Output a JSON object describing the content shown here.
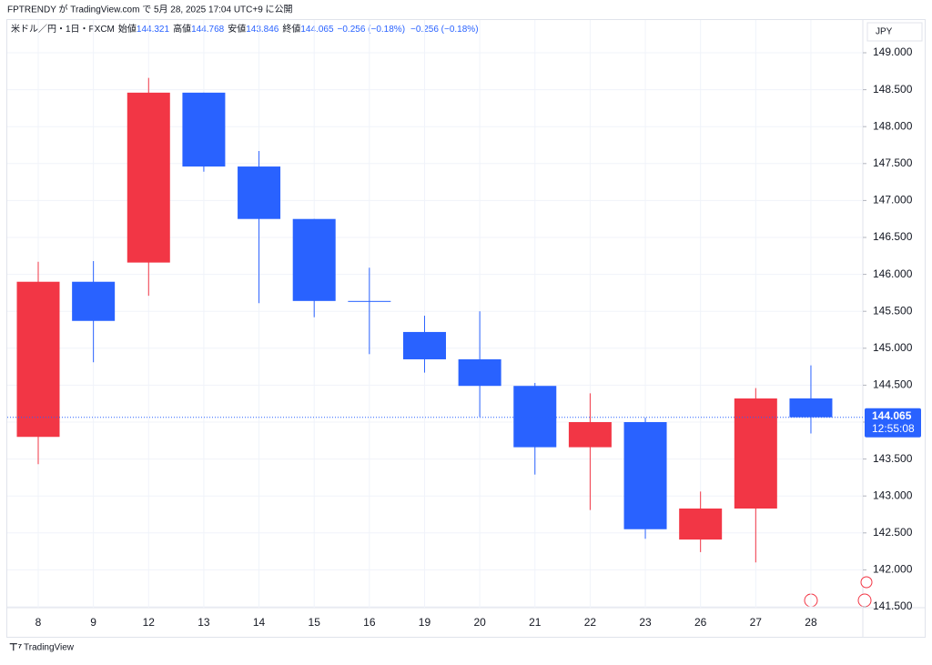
{
  "header": {
    "publisher": "FPTRENDY が TradingView.com で 5月 28, 2025 17:04 UTC+9 に公開",
    "symbol": "米ドル／円・1日・FXCM",
    "open_label": "始値",
    "high_label": "高値",
    "low_label": "安値",
    "close_label": "終値",
    "change": "−0.256 (−0.18%)",
    "change2": "−0.256 (−0.18%)",
    "currency": "JPY"
  },
  "chart_data": {
    "type": "candlestick",
    "categories": [
      "8",
      "9",
      "12",
      "13",
      "14",
      "15",
      "16",
      "19",
      "20",
      "21",
      "22",
      "23",
      "26",
      "27",
      "28"
    ],
    "candles": [
      {
        "open": 143.8,
        "high": 146.17,
        "low": 143.43,
        "close": 145.9
      },
      {
        "open": 145.9,
        "high": 146.18,
        "low": 144.81,
        "close": 145.37
      },
      {
        "open": 146.16,
        "high": 148.66,
        "low": 145.71,
        "close": 148.46
      },
      {
        "open": 148.46,
        "high": 148.46,
        "low": 147.39,
        "close": 147.46
      },
      {
        "open": 147.46,
        "high": 147.67,
        "low": 145.61,
        "close": 146.75
      },
      {
        "open": 146.75,
        "high": 146.75,
        "low": 145.42,
        "close": 145.64
      },
      {
        "open": 145.64,
        "high": 146.09,
        "low": 144.92,
        "close": 145.63
      },
      {
        "open": 145.22,
        "high": 145.44,
        "low": 144.67,
        "close": 144.85
      },
      {
        "open": 144.85,
        "high": 145.5,
        "low": 144.07,
        "close": 144.49
      },
      {
        "open": 144.49,
        "high": 144.53,
        "low": 143.29,
        "close": 143.66
      },
      {
        "open": 143.66,
        "high": 144.39,
        "low": 142.81,
        "close": 144.0
      },
      {
        "open": 144.0,
        "high": 144.06,
        "low": 142.42,
        "close": 142.55
      },
      {
        "open": 142.41,
        "high": 143.06,
        "low": 142.24,
        "close": 142.83
      },
      {
        "open": 142.83,
        "high": 144.46,
        "low": 142.1,
        "close": 144.32
      },
      {
        "open": 144.321,
        "high": 144.768,
        "low": 143.846,
        "close": 144.065
      }
    ],
    "up_color": "#f23645",
    "down_color": "#2962ff",
    "ylim": [
      141.35,
      149.2
    ],
    "yticks": [
      {
        "value": 141.5,
        "label": "141.500"
      },
      {
        "value": 142,
        "label": "142.000"
      },
      {
        "value": 142.5,
        "label": "142.500"
      },
      {
        "value": 143,
        "label": "143.000"
      },
      {
        "value": 143.5,
        "label": "143.500"
      },
      {
        "value": 144,
        "label": "144.000"
      },
      {
        "value": 144.5,
        "label": "144.500"
      },
      {
        "value": 145,
        "label": "145.000"
      },
      {
        "value": 145.5,
        "label": "145.500"
      },
      {
        "value": 146,
        "label": "146.000"
      },
      {
        "value": 146.5,
        "label": "146.500"
      },
      {
        "value": 147,
        "label": "147.000"
      },
      {
        "value": 147.5,
        "label": "147.500"
      },
      {
        "value": 148,
        "label": "148.000"
      },
      {
        "value": 148.5,
        "label": "148.500"
      },
      {
        "value": 149,
        "label": "149.000"
      }
    ],
    "countdown": "12:55:08",
    "grid": true
  },
  "footer": {
    "brand": "TradingView"
  }
}
